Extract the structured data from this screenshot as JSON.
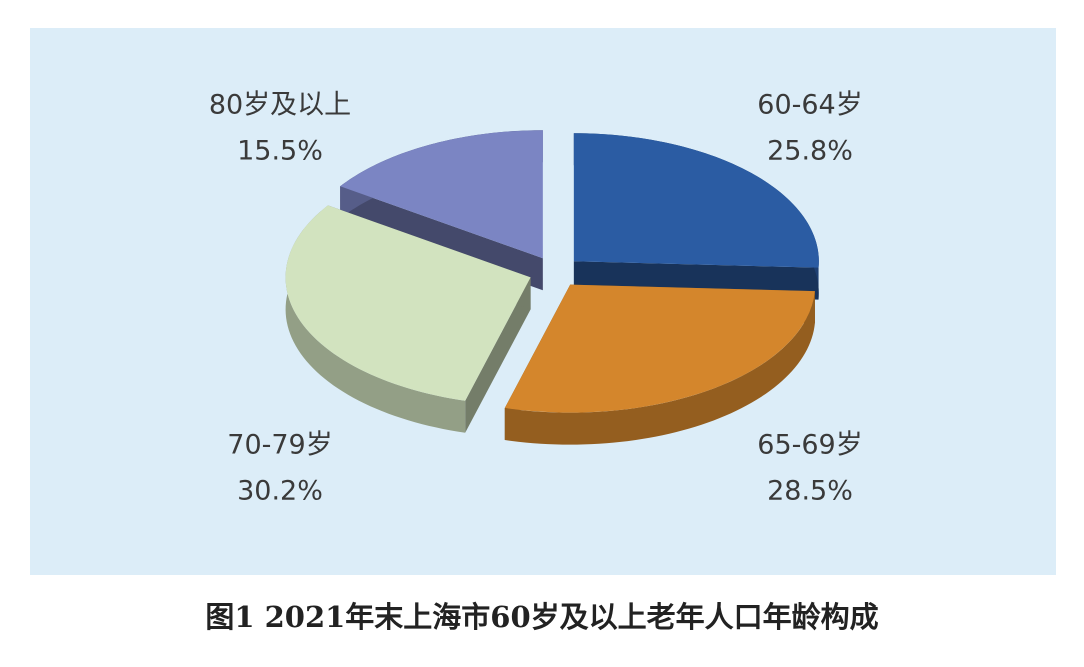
{
  "chart_data": {
    "type": "pie",
    "title": "图1 2021年末上海市60岁及以上老年人口年龄构成",
    "categories": [
      "60-64岁",
      "65-69岁",
      "70-79岁",
      "80岁及以上"
    ],
    "values": [
      25.8,
      28.5,
      30.2,
      15.5
    ],
    "value_labels": [
      "25.8%",
      "28.5%",
      "30.2%",
      "15.5%"
    ],
    "colors": [
      "#2b5ca3",
      "#d4862c",
      "#d2e3bf",
      "#7b85c3"
    ]
  }
}
